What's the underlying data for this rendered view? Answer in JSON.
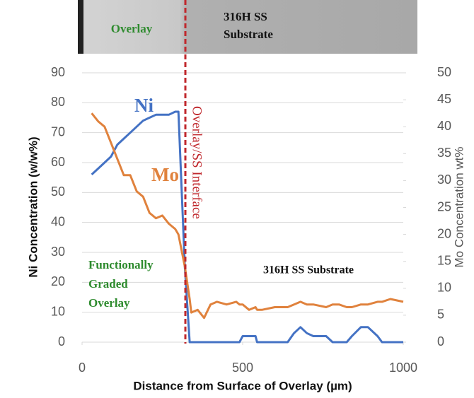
{
  "micrograph": {
    "overlay_label": "Overlay",
    "substrate_label": [
      "316H SS",
      "Substrate"
    ]
  },
  "chart_data": {
    "type": "line",
    "x_label": "Distance from Surface of Overlay (µm)",
    "y_label": "Ni Concentration (w/w%)",
    "y2_label": "Mo Concentration wt%",
    "annotations": {
      "interface": "Overlay/SS Interface",
      "graded": [
        "Functionally",
        "Graded",
        "Overlay"
      ],
      "substrate": "316H SS Substrate"
    },
    "x": [
      30,
      50,
      70,
      90,
      110,
      130,
      150,
      170,
      190,
      210,
      230,
      250,
      270,
      290,
      300,
      320,
      335,
      340,
      360,
      380,
      400,
      420,
      450,
      480,
      490,
      500,
      520,
      540,
      545,
      560,
      600,
      640,
      660,
      680,
      700,
      720,
      760,
      780,
      800,
      824,
      840,
      868,
      890,
      920,
      934,
      960,
      1000
    ],
    "series": [
      {
        "name": "Ni",
        "color": "#4472c4",
        "axis": "y",
        "values": [
          56,
          58,
          60,
          62,
          66,
          68,
          70,
          72,
          74,
          75,
          76,
          76,
          76,
          77,
          77,
          25,
          0,
          0,
          0,
          0,
          0,
          0,
          0,
          0,
          0,
          2,
          2,
          2,
          0,
          0,
          0,
          0,
          3,
          5,
          3,
          2,
          2,
          0,
          0,
          0,
          2,
          5,
          5,
          2,
          0,
          0,
          0
        ]
      },
      {
        "name": "Mo",
        "color": "#e0823d",
        "axis": "y2",
        "values": [
          42.5,
          41,
          40,
          37,
          34,
          31,
          31,
          28,
          27,
          24,
          23,
          23.5,
          22,
          21,
          20,
          14,
          8,
          5.5,
          6,
          4.5,
          7,
          7.5,
          7,
          7.5,
          7,
          7,
          6,
          6.5,
          6,
          6,
          6.5,
          6.5,
          7,
          7.5,
          7,
          7,
          6.5,
          7,
          7,
          6.5,
          6.5,
          7,
          7,
          7.5,
          7.5,
          8,
          7.5
        ]
      }
    ],
    "xlim": [
      0,
      1000
    ],
    "xticks": [
      0,
      500,
      1000
    ],
    "ylim": [
      0,
      90
    ],
    "yticks": [
      0,
      10,
      20,
      30,
      40,
      50,
      60,
      70,
      80,
      90
    ],
    "y2lim": [
      0,
      50
    ],
    "y2ticks": [
      0,
      5,
      10,
      15,
      20,
      25,
      30,
      35,
      40,
      45,
      50
    ],
    "grid": true
  }
}
